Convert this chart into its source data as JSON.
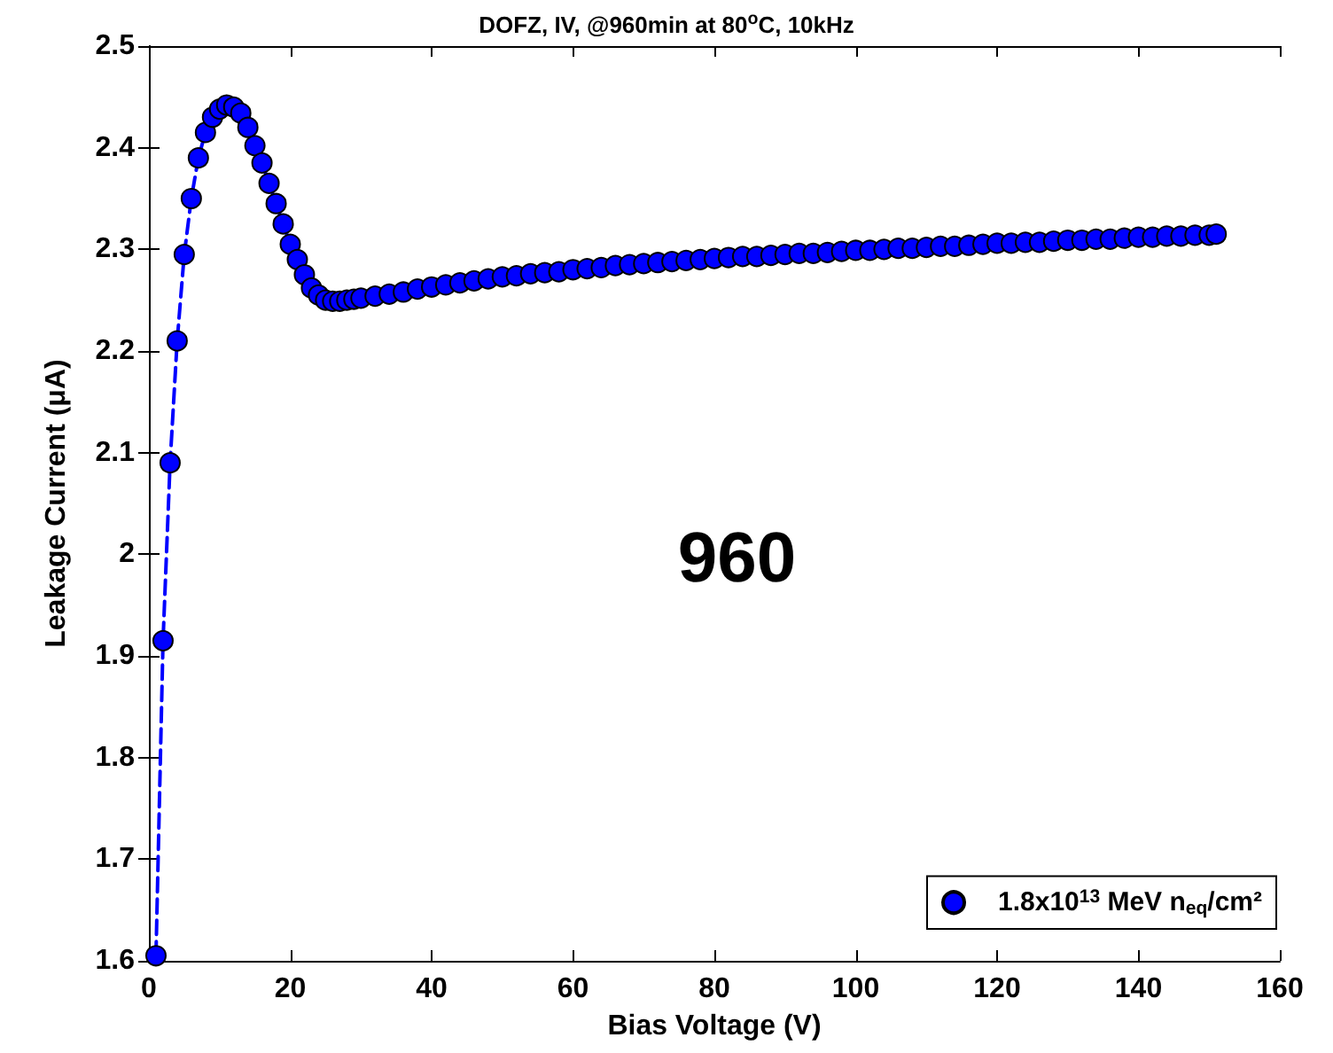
{
  "chart_data": {
    "type": "line",
    "title": "DOFZ, IV, @960min at 80$^{o}$C, 10kHz",
    "xlabel": "Bias Voltage (V)",
    "ylabel": "Leakage Current (μA)",
    "annotations": [
      "960"
    ],
    "x": [
      1,
      2,
      3,
      4,
      5,
      6,
      7,
      8,
      9,
      10,
      11,
      12,
      13,
      14,
      15,
      16,
      17,
      18,
      19,
      20,
      21,
      22,
      23,
      24,
      25,
      26,
      27,
      28,
      29,
      30,
      32,
      34,
      36,
      38,
      40,
      42,
      44,
      46,
      48,
      50,
      52,
      54,
      56,
      58,
      60,
      62,
      64,
      66,
      68,
      70,
      72,
      74,
      76,
      78,
      80,
      82,
      84,
      86,
      88,
      90,
      92,
      94,
      96,
      98,
      100,
      102,
      104,
      106,
      108,
      110,
      112,
      114,
      116,
      118,
      120,
      122,
      124,
      126,
      128,
      130,
      132,
      134,
      136,
      138,
      140,
      142,
      144,
      146,
      148,
      150,
      151
    ],
    "series": [
      {
        "name": "1.8x10$^{13}$ MeV n$_{eq}$/cm²",
        "color": "#0000ff",
        "values": [
          1.605,
          1.915,
          2.09,
          2.21,
          2.295,
          2.35,
          2.39,
          2.415,
          2.43,
          2.438,
          2.442,
          2.44,
          2.434,
          2.42,
          2.402,
          2.385,
          2.365,
          2.345,
          2.325,
          2.305,
          2.29,
          2.275,
          2.262,
          2.255,
          2.25,
          2.249,
          2.249,
          2.25,
          2.251,
          2.252,
          2.254,
          2.256,
          2.258,
          2.261,
          2.263,
          2.265,
          2.267,
          2.269,
          2.271,
          2.273,
          2.274,
          2.276,
          2.277,
          2.278,
          2.28,
          2.281,
          2.282,
          2.284,
          2.285,
          2.286,
          2.287,
          2.288,
          2.289,
          2.29,
          2.291,
          2.292,
          2.293,
          2.293,
          2.294,
          2.295,
          2.296,
          2.296,
          2.297,
          2.298,
          2.299,
          2.299,
          2.3,
          2.301,
          2.301,
          2.302,
          2.303,
          2.303,
          2.304,
          2.305,
          2.306,
          2.306,
          2.307,
          2.307,
          2.308,
          2.309,
          2.309,
          2.31,
          2.31,
          2.311,
          2.312,
          2.312,
          2.313,
          2.313,
          2.314,
          2.314,
          2.315
        ]
      }
    ],
    "xlim": [
      0,
      160
    ],
    "xticks": [
      0,
      20,
      40,
      60,
      80,
      100,
      120,
      140,
      160
    ],
    "ylim": [
      1.6,
      2.5
    ],
    "yticks": [
      1.6,
      1.7,
      1.8,
      1.9,
      2,
      2.1,
      2.2,
      2.3,
      2.4,
      2.5
    ],
    "grid": false,
    "legend": "bottom right",
    "marker": "circle",
    "line_style": "dashed"
  }
}
